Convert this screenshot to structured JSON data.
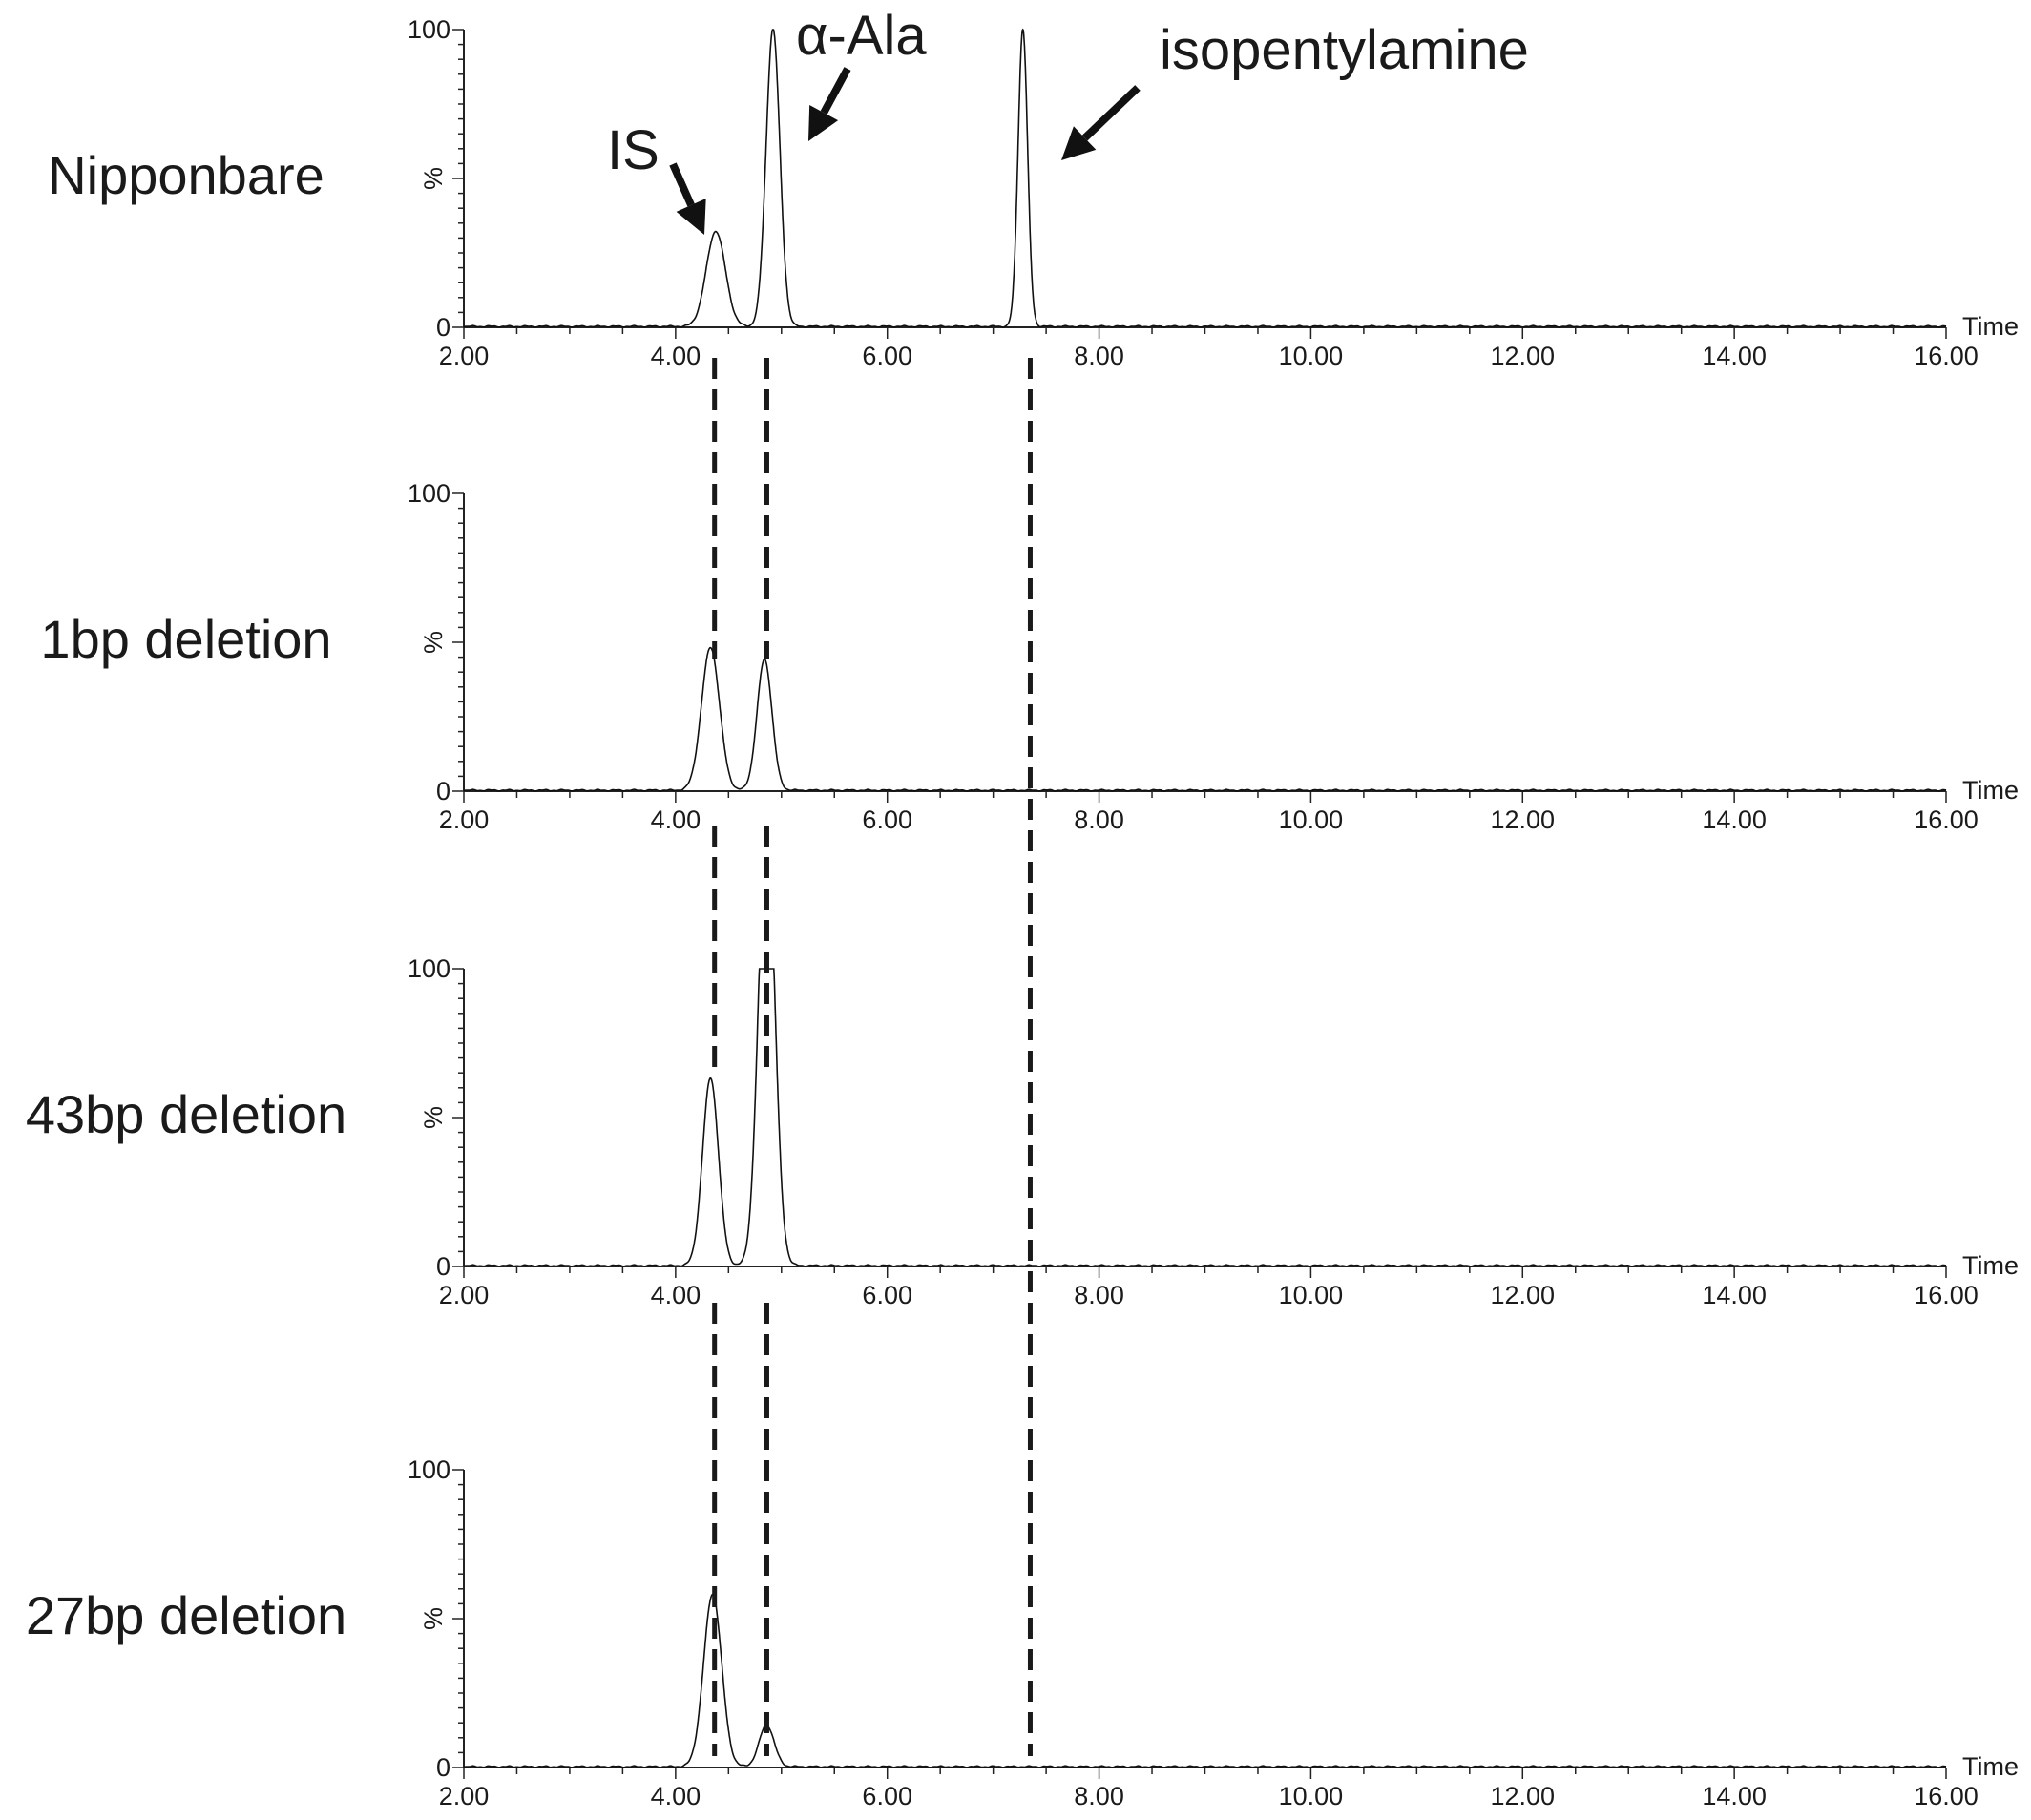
{
  "chart_data": {
    "type": "line",
    "x_axis": {
      "min": 2.0,
      "max": 16.0,
      "ticks": [
        "2.00",
        "4.00",
        "6.00",
        "8.00",
        "10.00",
        "12.00",
        "14.00",
        "16.00"
      ],
      "label": "Time"
    },
    "y_axis": {
      "min": 0,
      "max": 100,
      "tick_labels": [
        "0",
        "%",
        "100"
      ]
    },
    "panels": [
      {
        "sample": "Nipponbare",
        "peaks": [
          {
            "rt": 4.38,
            "height": 32,
            "width": 0.09
          },
          {
            "rt": 4.92,
            "height": 100,
            "width": 0.065
          },
          {
            "rt": 7.28,
            "height": 100,
            "width": 0.045
          }
        ]
      },
      {
        "sample": "1bp deletion",
        "peaks": [
          {
            "rt": 4.33,
            "height": 48,
            "width": 0.085
          },
          {
            "rt": 4.84,
            "height": 44,
            "width": 0.07
          }
        ]
      },
      {
        "sample": "43bp deletion",
        "peaks": [
          {
            "rt": 4.33,
            "height": 63,
            "width": 0.075
          },
          {
            "rt": 4.86,
            "height": 100,
            "width": 0.07,
            "clipped": true
          }
        ]
      },
      {
        "sample": "27bp deletion",
        "peaks": [
          {
            "rt": 4.35,
            "height": 58,
            "width": 0.085
          },
          {
            "rt": 4.86,
            "height": 14,
            "width": 0.07
          }
        ]
      }
    ],
    "annotations": [
      "IS",
      "α-Ala",
      "isopentylamine"
    ],
    "reference_lines_rt": [
      4.35,
      4.88,
      7.35
    ]
  }
}
